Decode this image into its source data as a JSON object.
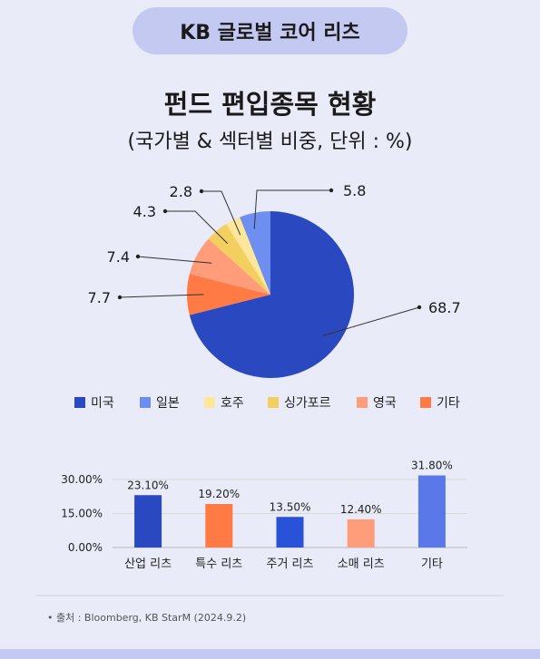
{
  "banner": "KB 글로벌 코어 리츠",
  "title": "펀드 편입종목 현황",
  "subtitle": "(국가별 & 섹터별 비중, 단위 : %)",
  "source": "• 출처 : Bloomberg, KB StarM (2024.9.2)",
  "chart_data": [
    {
      "type": "pie",
      "slices": [
        {
          "label": "미국",
          "value": 68.7,
          "display": "68.7",
          "color": "#2a48bf"
        },
        {
          "label": "기타",
          "value": 7.7,
          "display": "7.7",
          "color": "#ff7a45"
        },
        {
          "label": "영국",
          "value": 7.4,
          "display": "7.4",
          "color": "#ff9d7a"
        },
        {
          "label": "싱가포르",
          "value": 4.3,
          "display": "4.3",
          "color": "#f2cf5e"
        },
        {
          "label": "호주",
          "value": 2.8,
          "display": "2.8",
          "color": "#fde79b"
        },
        {
          "label": "일본",
          "value": 5.8,
          "display": "5.8",
          "color": "#6f8ff0"
        }
      ],
      "legend": [
        "미국",
        "일본",
        "호주",
        "싱가포르",
        "영국",
        "기타"
      ],
      "legend_colors": [
        "#2a48bf",
        "#6f8ff0",
        "#fde79b",
        "#f2cf5e",
        "#ff9d7a",
        "#ff7a45"
      ]
    },
    {
      "type": "bar",
      "categories": [
        "산업 리츠",
        "특수 리츠",
        "주거 리츠",
        "소매 리츠",
        "기타"
      ],
      "values": [
        23.1,
        19.2,
        13.5,
        12.4,
        31.8
      ],
      "labels": [
        "23.10%",
        "19.20%",
        "13.50%",
        "12.40%",
        "31.80%"
      ],
      "colors": [
        "#2a48bf",
        "#ff7a45",
        "#2a52d9",
        "#ff9d7a",
        "#5a78e8"
      ],
      "yticks": [
        "0.00%",
        "15.00%",
        "30.00%"
      ],
      "ytick_values": [
        0,
        15,
        30
      ],
      "ylim": [
        0,
        35
      ],
      "grid": true
    }
  ]
}
